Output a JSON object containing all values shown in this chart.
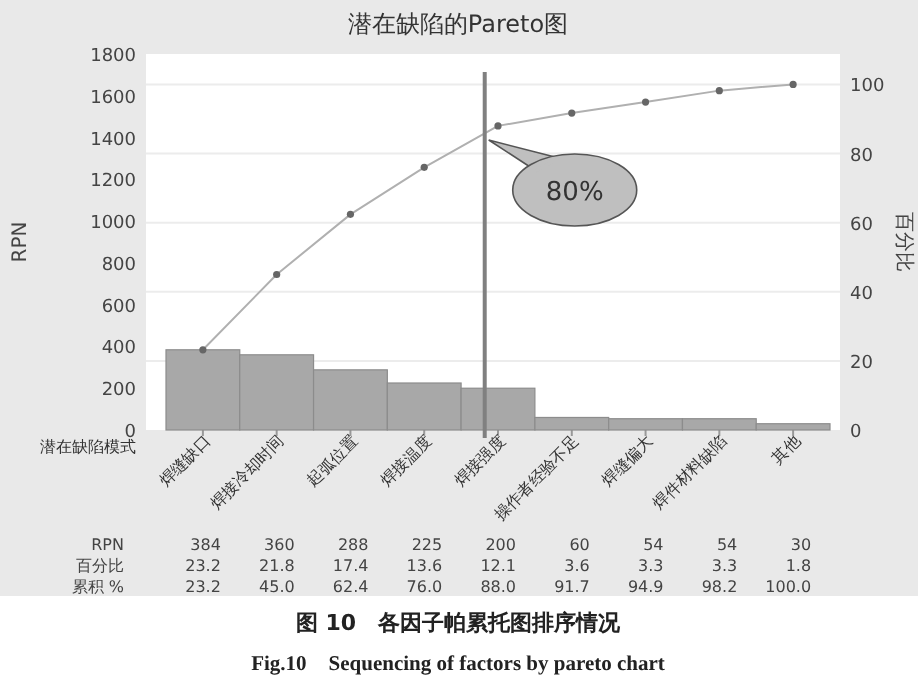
{
  "chart_data": [
    {
      "type": "bar",
      "title": "潜在缺陷的Pareto图",
      "xlabel": "潜在缺陷模式",
      "ylabel": "RPN",
      "y2label": "百分比",
      "categories": [
        "焊缝缺口",
        "焊接冷却时间",
        "起弧位置",
        "焊接温度",
        "焊接强度",
        "操作者经验不足",
        "焊缝偏大",
        "焊件材料缺陷",
        "其他"
      ],
      "series": [
        {
          "type": "bar",
          "color": "#a8a8a8",
          "values": [
            384,
            360,
            288,
            225,
            200,
            60,
            54,
            54,
            30
          ]
        },
        {
          "type": "line",
          "axis": "y2",
          "color": "#b0b0b0",
          "values": [
            23.2,
            45.0,
            62.4,
            76.0,
            88.0,
            91.7,
            94.9,
            98.2,
            100.0
          ]
        }
      ],
      "ylim": [
        0,
        1800
      ],
      "yticks": [
        0,
        200,
        400,
        600,
        800,
        1000,
        1200,
        1400,
        1600,
        1800
      ],
      "y2lim": [
        0,
        108.8
      ],
      "y2ticks": [
        0,
        20,
        40,
        60,
        80,
        100
      ],
      "ref_lines": [
        {
          "axis": "x",
          "value": "焊接强度",
          "label": "80%",
          "color": "#808080"
        }
      ],
      "grid": "y",
      "marker": "circle",
      "annotations": [
        "图 10　各因子帕累托图排序情况",
        "Fig.10　Sequencing of factors by pareto chart"
      ]
    },
    {
      "type": "heatmap",
      "categories": [
        null,
        null,
        null,
        null,
        null,
        null,
        null,
        null,
        null
      ],
      "y_categories": [
        "RPN",
        "百分比",
        "累积 %"
      ],
      "cells": [
        [
          384,
          360,
          288,
          225,
          200,
          60,
          54,
          54,
          30
        ],
        [
          23.2,
          21.8,
          17.4,
          13.6,
          12.1,
          3.6,
          3.3,
          3.3,
          1.8
        ],
        [
          23.2,
          45.0,
          62.4,
          76.0,
          88.0,
          91.7,
          94.9,
          98.2,
          100.0
        ]
      ],
      "cell_labels": [
        [
          "384",
          "360",
          "288",
          "225",
          "200",
          "60",
          "54",
          "54",
          "30"
        ],
        [
          "23.2",
          "21.8",
          "17.4",
          "13.6",
          "12.1",
          "3.6",
          "3.3",
          "3.3",
          "1.8"
        ],
        [
          "23.2",
          "45.0",
          "62.4",
          "76.0",
          "88.0",
          "91.7",
          "94.9",
          "98.2",
          "100.0"
        ]
      ]
    }
  ]
}
